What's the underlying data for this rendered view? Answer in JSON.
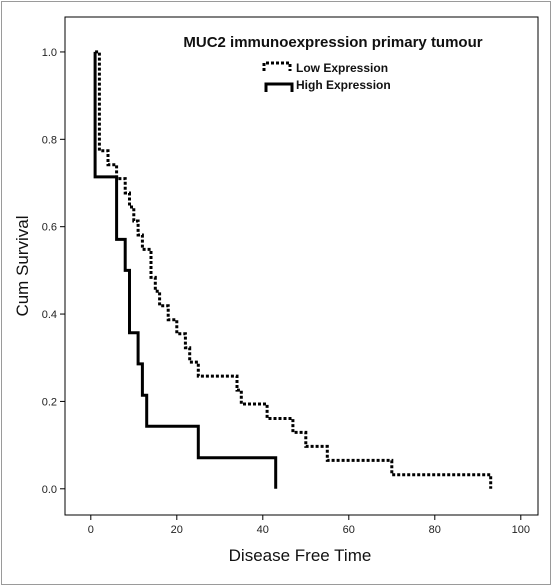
{
  "chart_data": {
    "type": "line",
    "subtype": "kaplan-meier-step",
    "title": "MUC2 immunoexpression primary tumour",
    "xlabel": "Disease Free Time",
    "ylabel": "Cum Survival",
    "xlim": [
      -6,
      104
    ],
    "ylim": [
      -0.06,
      1.08
    ],
    "xticks": [
      0,
      20,
      40,
      60,
      80,
      100
    ],
    "yticks": [
      0.0,
      0.2,
      0.4,
      0.6,
      0.8,
      1.0
    ],
    "xtick_labels": [
      "0",
      "20",
      "40",
      "60",
      "80",
      "100"
    ],
    "ytick_labels": [
      "0.0",
      "0.2",
      "0.4",
      "0.6",
      "0.8",
      "1.0"
    ],
    "grid": false,
    "legend_position": "top-right",
    "series": [
      {
        "name": "Low Expression",
        "style": "dotted",
        "color": "#000000",
        "x": [
          1,
          2,
          4,
          6,
          7,
          8,
          9,
          10,
          11,
          12,
          14,
          15,
          16,
          18,
          20,
          22,
          23,
          25,
          30,
          34,
          35,
          36,
          41,
          42,
          47,
          50,
          55,
          56,
          62,
          70,
          93,
          93
        ],
        "y": [
          1.0,
          0.774,
          0.742,
          0.71,
          0.71,
          0.677,
          0.645,
          0.613,
          0.581,
          0.548,
          0.484,
          0.452,
          0.419,
          0.387,
          0.355,
          0.323,
          0.29,
          0.258,
          0.258,
          0.226,
          0.194,
          0.194,
          0.161,
          0.161,
          0.129,
          0.097,
          0.065,
          0.065,
          0.065,
          0.032,
          0.0,
          0.0
        ]
      },
      {
        "name": "High Expression",
        "style": "solid",
        "color": "#000000",
        "x": [
          1,
          1,
          6,
          8,
          9,
          11,
          12,
          13,
          25,
          43
        ],
        "y": [
          1.0,
          0.714,
          0.571,
          0.5,
          0.357,
          0.286,
          0.214,
          0.143,
          0.071,
          0.0
        ]
      }
    ]
  },
  "legend": {
    "items": [
      {
        "label": "Low Expression",
        "style": "dotted"
      },
      {
        "label": "High Expression",
        "style": "solid"
      }
    ]
  }
}
